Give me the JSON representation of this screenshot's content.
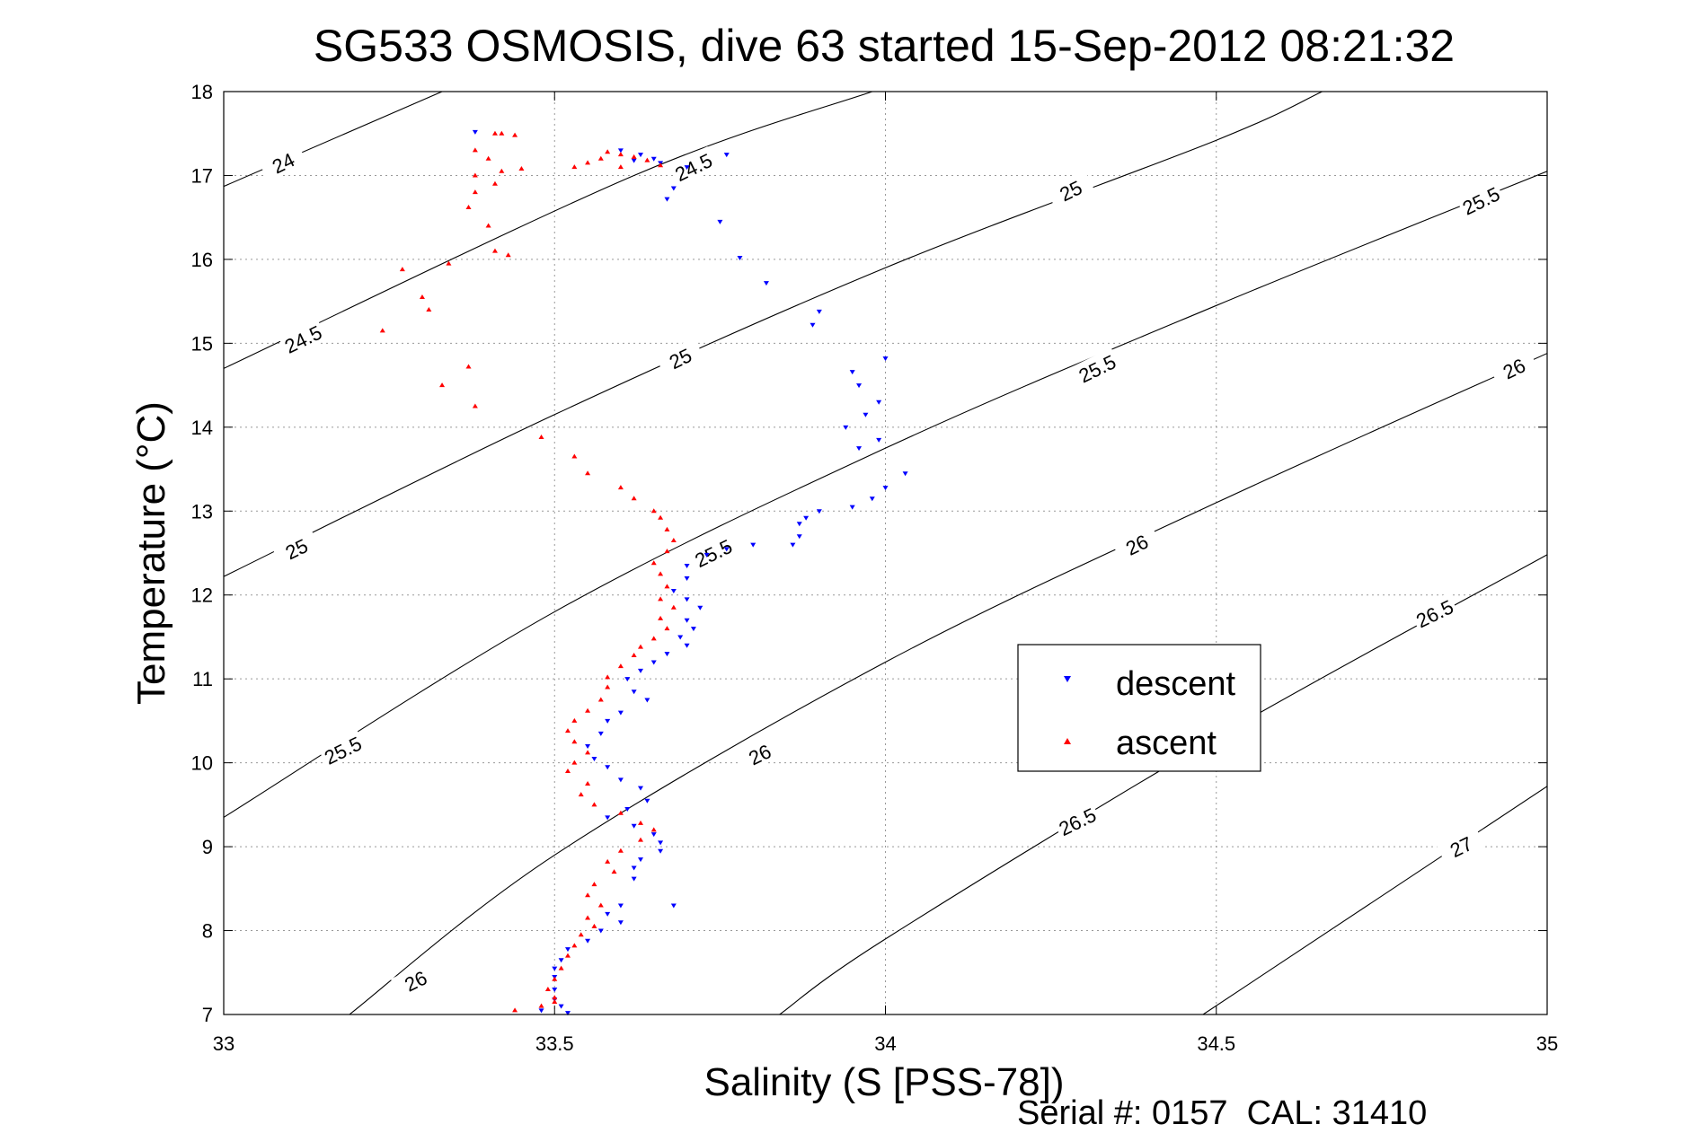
{
  "chart_data": {
    "type": "scatter",
    "title": "SG533 OSMOSIS, dive 63 started 15-Sep-2012 08:21:32",
    "xlabel": "Salinity (S [PSS-78])",
    "ylabel": "Temperature (°C)",
    "footer": "Serial #: 0157  CAL: 31410",
    "xlim": [
      33,
      35
    ],
    "ylim": [
      7,
      18
    ],
    "xticks": [
      "33",
      "33.5",
      "34",
      "34.5",
      "35"
    ],
    "yticks": [
      "7",
      "8",
      "9",
      "10",
      "11",
      "12",
      "13",
      "14",
      "15",
      "16",
      "17",
      "18"
    ],
    "grid": true,
    "legend_position": "center-right",
    "density_contours": [
      "24",
      "24.5",
      "25",
      "25.5",
      "26",
      "26.5",
      "27"
    ],
    "series": [
      {
        "name": "descent",
        "color": "#0000ff",
        "marker": "triangle-down",
        "points": [
          [
            33.38,
            17.52
          ],
          [
            33.6,
            17.3
          ],
          [
            33.63,
            17.25
          ],
          [
            33.65,
            17.2
          ],
          [
            33.62,
            17.18
          ],
          [
            33.66,
            17.15
          ],
          [
            33.7,
            17.1
          ],
          [
            33.76,
            17.25
          ],
          [
            33.68,
            16.85
          ],
          [
            33.67,
            16.72
          ],
          [
            33.75,
            16.45
          ],
          [
            33.78,
            16.02
          ],
          [
            33.82,
            15.72
          ],
          [
            33.9,
            15.38
          ],
          [
            33.89,
            15.22
          ],
          [
            34.0,
            14.82
          ],
          [
            33.95,
            14.66
          ],
          [
            33.96,
            14.5
          ],
          [
            33.99,
            14.3
          ],
          [
            33.97,
            14.15
          ],
          [
            33.94,
            14.0
          ],
          [
            33.99,
            13.85
          ],
          [
            33.96,
            13.75
          ],
          [
            34.03,
            13.45
          ],
          [
            34.0,
            13.28
          ],
          [
            33.98,
            13.15
          ],
          [
            33.95,
            13.05
          ],
          [
            33.9,
            13.0
          ],
          [
            33.88,
            12.92
          ],
          [
            33.87,
            12.85
          ],
          [
            33.87,
            12.7
          ],
          [
            33.86,
            12.6
          ],
          [
            33.8,
            12.6
          ],
          [
            33.76,
            12.55
          ],
          [
            33.73,
            12.48
          ],
          [
            33.7,
            12.35
          ],
          [
            33.7,
            12.2
          ],
          [
            33.68,
            12.05
          ],
          [
            33.7,
            11.95
          ],
          [
            33.72,
            11.85
          ],
          [
            33.7,
            11.7
          ],
          [
            33.71,
            11.6
          ],
          [
            33.69,
            11.5
          ],
          [
            33.7,
            11.4
          ],
          [
            33.67,
            11.3
          ],
          [
            33.65,
            11.2
          ],
          [
            33.63,
            11.1
          ],
          [
            33.61,
            11.0
          ],
          [
            33.62,
            10.85
          ],
          [
            33.64,
            10.75
          ],
          [
            33.6,
            10.6
          ],
          [
            33.58,
            10.5
          ],
          [
            33.57,
            10.35
          ],
          [
            33.55,
            10.2
          ],
          [
            33.56,
            10.05
          ],
          [
            33.58,
            9.95
          ],
          [
            33.6,
            9.8
          ],
          [
            33.63,
            9.7
          ],
          [
            33.64,
            9.55
          ],
          [
            33.61,
            9.45
          ],
          [
            33.58,
            9.35
          ],
          [
            33.62,
            9.25
          ],
          [
            33.65,
            9.15
          ],
          [
            33.66,
            9.05
          ],
          [
            33.66,
            8.95
          ],
          [
            33.63,
            8.85
          ],
          [
            33.62,
            8.75
          ],
          [
            33.62,
            8.62
          ],
          [
            33.68,
            8.3
          ],
          [
            33.6,
            8.3
          ],
          [
            33.58,
            8.2
          ],
          [
            33.6,
            8.1
          ],
          [
            33.57,
            8.0
          ],
          [
            33.55,
            7.88
          ],
          [
            33.52,
            7.78
          ],
          [
            33.51,
            7.65
          ],
          [
            33.5,
            7.55
          ],
          [
            33.5,
            7.45
          ],
          [
            33.5,
            7.3
          ],
          [
            33.5,
            7.18
          ],
          [
            33.51,
            7.1
          ],
          [
            33.48,
            7.05
          ],
          [
            33.52,
            7.02
          ]
        ]
      },
      {
        "name": "ascent",
        "color": "#ff0000",
        "marker": "triangle-up",
        "points": [
          [
            33.41,
            17.5
          ],
          [
            33.42,
            17.5
          ],
          [
            33.44,
            17.48
          ],
          [
            33.38,
            17.3
          ],
          [
            33.4,
            17.2
          ],
          [
            33.45,
            17.08
          ],
          [
            33.42,
            17.05
          ],
          [
            33.38,
            17.0
          ],
          [
            33.41,
            16.9
          ],
          [
            33.38,
            16.8
          ],
          [
            33.37,
            16.62
          ],
          [
            33.4,
            16.4
          ],
          [
            33.41,
            16.1
          ],
          [
            33.43,
            16.05
          ],
          [
            33.34,
            15.95
          ],
          [
            33.27,
            15.88
          ],
          [
            33.3,
            15.55
          ],
          [
            33.31,
            15.4
          ],
          [
            33.24,
            15.15
          ],
          [
            33.37,
            14.72
          ],
          [
            33.33,
            14.5
          ],
          [
            33.38,
            14.25
          ],
          [
            33.48,
            13.88
          ],
          [
            33.53,
            13.65
          ],
          [
            33.55,
            13.45
          ],
          [
            33.6,
            13.28
          ],
          [
            33.62,
            13.15
          ],
          [
            33.65,
            13.0
          ],
          [
            33.66,
            12.92
          ],
          [
            33.67,
            12.78
          ],
          [
            33.68,
            12.65
          ],
          [
            33.67,
            12.52
          ],
          [
            33.65,
            12.38
          ],
          [
            33.66,
            12.25
          ],
          [
            33.67,
            12.1
          ],
          [
            33.66,
            11.95
          ],
          [
            33.68,
            11.85
          ],
          [
            33.66,
            11.72
          ],
          [
            33.67,
            11.6
          ],
          [
            33.65,
            11.48
          ],
          [
            33.63,
            11.38
          ],
          [
            33.62,
            11.28
          ],
          [
            33.6,
            11.15
          ],
          [
            33.58,
            11.02
          ],
          [
            33.58,
            10.9
          ],
          [
            33.57,
            10.75
          ],
          [
            33.55,
            10.62
          ],
          [
            33.53,
            10.5
          ],
          [
            33.52,
            10.38
          ],
          [
            33.53,
            10.25
          ],
          [
            33.55,
            10.12
          ],
          [
            33.53,
            10.0
          ],
          [
            33.52,
            9.9
          ],
          [
            33.55,
            9.75
          ],
          [
            33.54,
            9.62
          ],
          [
            33.56,
            9.5
          ],
          [
            33.6,
            9.4
          ],
          [
            33.63,
            9.28
          ],
          [
            33.65,
            9.2
          ],
          [
            33.63,
            9.08
          ],
          [
            33.6,
            8.95
          ],
          [
            33.58,
            8.82
          ],
          [
            33.59,
            8.7
          ],
          [
            33.56,
            8.55
          ],
          [
            33.55,
            8.42
          ],
          [
            33.57,
            8.3
          ],
          [
            33.55,
            8.15
          ],
          [
            33.56,
            8.05
          ],
          [
            33.54,
            7.95
          ],
          [
            33.53,
            7.82
          ],
          [
            33.52,
            7.7
          ],
          [
            33.51,
            7.55
          ],
          [
            33.5,
            7.42
          ],
          [
            33.49,
            7.3
          ],
          [
            33.5,
            7.2
          ],
          [
            33.44,
            7.05
          ],
          [
            33.48,
            7.1
          ],
          [
            33.5,
            7.15
          ],
          [
            33.53,
            17.1
          ],
          [
            33.55,
            17.15
          ],
          [
            33.57,
            17.2
          ],
          [
            33.58,
            17.28
          ],
          [
            33.6,
            17.25
          ],
          [
            33.62,
            17.22
          ],
          [
            33.64,
            17.18
          ],
          [
            33.66,
            17.12
          ],
          [
            33.6,
            17.1
          ]
        ]
      }
    ]
  }
}
